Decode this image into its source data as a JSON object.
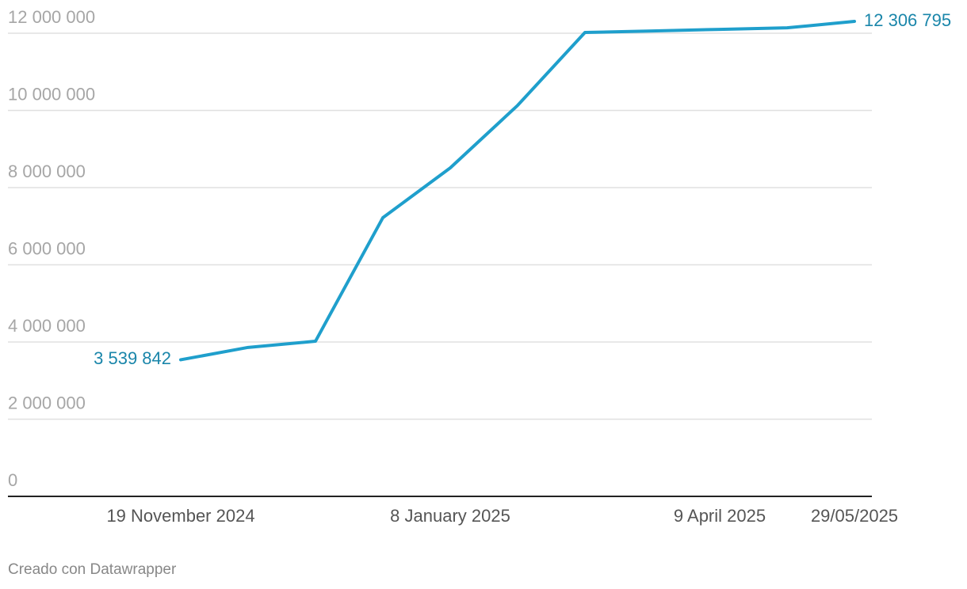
{
  "chart_data": {
    "type": "line",
    "categories": [
      "19 November 2024",
      null,
      null,
      null,
      "8 January 2025",
      null,
      null,
      null,
      "9 April 2025",
      null,
      "29/05/2025"
    ],
    "series": [
      {
        "color": "#1f9fcc",
        "values": [
          3539842,
          3860000,
          4020000,
          7220000,
          8510000,
          10130000,
          12020000,
          12060000,
          12100000,
          12140000,
          12306795
        ],
        "value_labels": [
          "3 539 842",
          null,
          null,
          null,
          null,
          null,
          null,
          null,
          null,
          null,
          "12 306 795"
        ]
      }
    ],
    "ylim": [
      0,
      12000000
    ],
    "yticks": [
      0,
      {
        "value": 2000000,
        "label": "2 000 000"
      },
      {
        "value": 4000000,
        "label": "4 000 000"
      },
      {
        "value": 6000000,
        "label": "6 000 000"
      },
      {
        "value": 8000000,
        "label": "8 000 000"
      },
      {
        "value": 10000000,
        "label": "10 000 000"
      },
      {
        "value": 12000000,
        "label": "12 000 000"
      }
    ],
    "grid": true,
    "credit": "Creado con Datawrapper"
  }
}
